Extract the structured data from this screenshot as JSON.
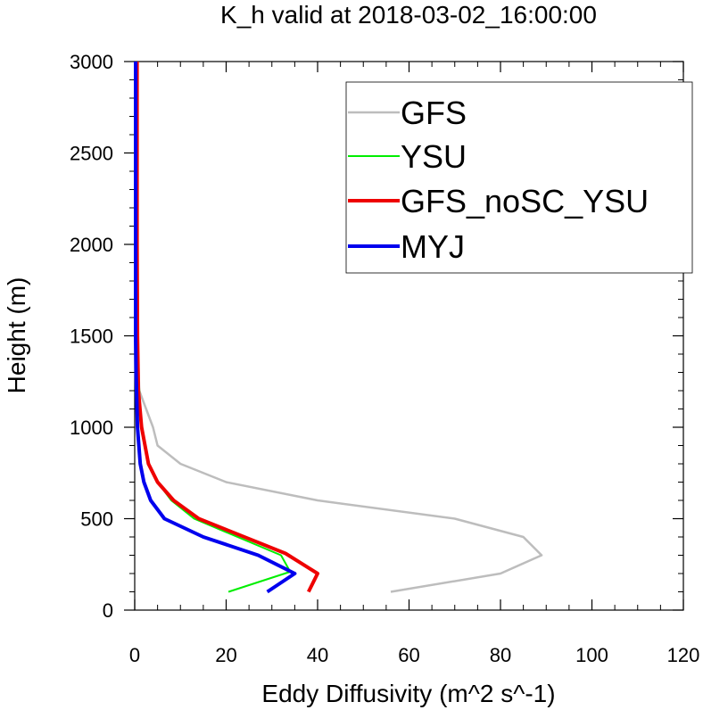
{
  "chart_data": {
    "type": "line",
    "title": "K_h valid at 2018-03-02_16:00:00",
    "xlabel": "Eddy Diffusivity (m^2 s^-1)",
    "ylabel": "Height (m)",
    "xlim": [
      0,
      120
    ],
    "ylim": [
      0,
      3000
    ],
    "xticks": [
      0,
      20,
      40,
      60,
      80,
      100,
      120
    ],
    "yticks": [
      0,
      500,
      1000,
      1500,
      2000,
      2500,
      3000
    ],
    "grid": false,
    "legend_position": "top-right",
    "series": [
      {
        "name": "GFS",
        "color": "#bdbdbd",
        "width": 2.5,
        "points": [
          [
            56,
            100
          ],
          [
            80,
            200
          ],
          [
            89,
            300
          ],
          [
            85,
            400
          ],
          [
            70,
            500
          ],
          [
            40,
            600
          ],
          [
            20,
            700
          ],
          [
            10,
            800
          ],
          [
            5,
            900
          ],
          [
            4,
            1000
          ],
          [
            1,
            1200
          ],
          [
            0.6,
            1500
          ],
          [
            0.5,
            2000
          ],
          [
            0.5,
            2500
          ],
          [
            0.5,
            3000
          ]
        ]
      },
      {
        "name": "YSU",
        "color": "#00ee00",
        "width": 2,
        "points": [
          [
            20.5,
            100
          ],
          [
            34,
            210
          ],
          [
            32,
            300
          ],
          [
            13,
            500
          ],
          [
            8,
            600
          ],
          [
            5,
            700
          ],
          [
            3,
            800
          ],
          [
            1.5,
            1000
          ],
          [
            1.2,
            1100
          ],
          [
            0.4,
            1500
          ],
          [
            0.2,
            2000
          ],
          [
            0.2,
            2500
          ],
          [
            0.2,
            3000
          ]
        ]
      },
      {
        "name": "GFS_noSC_YSU",
        "color": "#ee0000",
        "width": 4,
        "points": [
          [
            38,
            100
          ],
          [
            40,
            200
          ],
          [
            33,
            310
          ],
          [
            14,
            500
          ],
          [
            8.5,
            600
          ],
          [
            5,
            700
          ],
          [
            3,
            800
          ],
          [
            1.5,
            1000
          ],
          [
            0.8,
            1200
          ],
          [
            0.6,
            1500
          ],
          [
            0.5,
            2000
          ],
          [
            0.5,
            2500
          ],
          [
            0.5,
            3000
          ]
        ]
      },
      {
        "name": "MYJ",
        "color": "#0000ee",
        "width": 4,
        "points": [
          [
            29,
            100
          ],
          [
            35,
            200
          ],
          [
            27,
            300
          ],
          [
            15,
            400
          ],
          [
            6.5,
            500
          ],
          [
            3.5,
            600
          ],
          [
            2,
            700
          ],
          [
            1.2,
            800
          ],
          [
            0.6,
            1000
          ],
          [
            0.3,
            1300
          ],
          [
            0.2,
            1500
          ],
          [
            0.2,
            2000
          ],
          [
            0.2,
            2500
          ],
          [
            0.2,
            3000
          ]
        ]
      }
    ]
  }
}
